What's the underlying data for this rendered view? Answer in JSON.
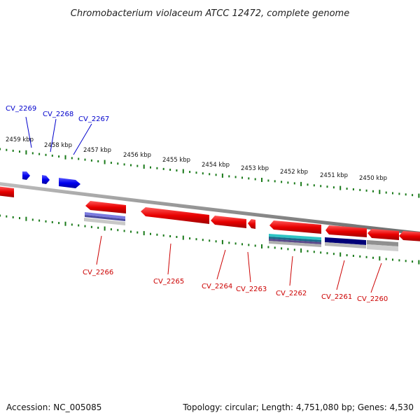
{
  "title": "Chromobacterium violaceum ATCC 12472, complete genome",
  "footer": {
    "accession": "Accession: NC_005085",
    "summary": "Topology: circular; Length: 4,751,080 bp; Genes: 4,530"
  },
  "scale_labels": [
    "2459 kbp",
    "2458 kbp",
    "2457 kbp",
    "2456 kbp",
    "2455 kbp",
    "2454 kbp",
    "2453 kbp",
    "2452 kbp",
    "2451 kbp",
    "2450 kbp"
  ],
  "genes": [
    {
      "name": "CV_2269",
      "strand": "forward"
    },
    {
      "name": "CV_2268",
      "strand": "forward"
    },
    {
      "name": "CV_2267",
      "strand": "forward"
    },
    {
      "name": "CV_2266",
      "strand": "reverse"
    },
    {
      "name": "CV_2265",
      "strand": "reverse"
    },
    {
      "name": "CV_2264",
      "strand": "reverse"
    },
    {
      "name": "CV_2263",
      "strand": "reverse"
    },
    {
      "name": "CV_2262",
      "strand": "reverse"
    },
    {
      "name": "CV_2261",
      "strand": "reverse"
    },
    {
      "name": "CV_2260",
      "strand": "reverse"
    }
  ],
  "colors": {
    "forward_gene": "#0000ee",
    "reverse_gene": "#ee0000",
    "backbone": "#808080",
    "tick": "#1a7a1a",
    "forward_label": "#0000cc",
    "reverse_label": "#cc0000"
  }
}
